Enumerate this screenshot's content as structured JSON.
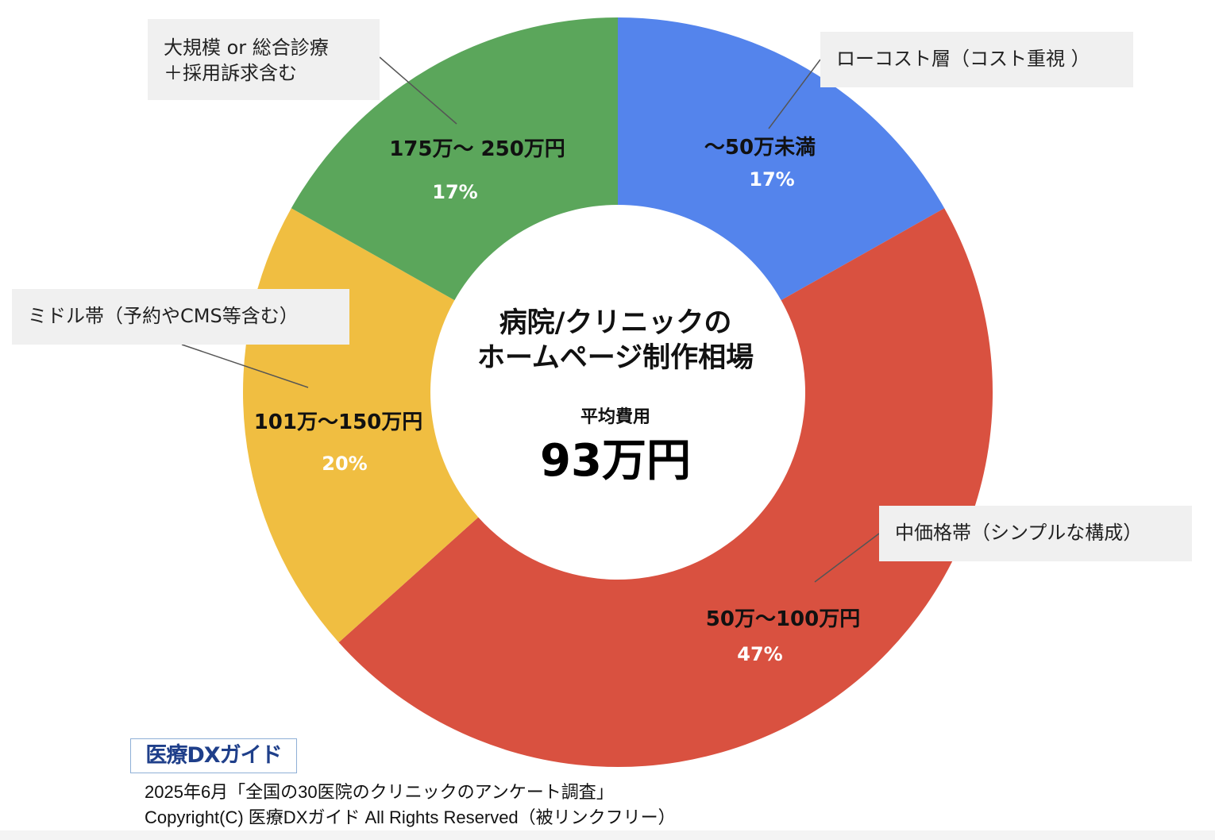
{
  "chart_data": {
    "type": "pie",
    "subtype": "donut",
    "slices": [
      {
        "label": "～50万未満",
        "percent": "17%",
        "value": 17,
        "color": "#5484ec",
        "callout": "ローコスト層（コスト重視 ）"
      },
      {
        "label": "50万～100万円",
        "percent": "47%",
        "value": 47,
        "color": "#d95140",
        "callout": "中価格帯（シンプルな構成）"
      },
      {
        "label": "101万～150万円",
        "percent": "20%",
        "value": 20,
        "color": "#f0be41",
        "callout": "ミドル帯（予約やCMS等含む）"
      },
      {
        "label": "175万～ 250万円",
        "percent": "17%",
        "value": 17,
        "color": "#5ba65b",
        "callout": "大規模 or 総合診療\n＋採用訴求含む"
      }
    ]
  },
  "center": {
    "title": "病院/クリニックの\nホームページ制作相場",
    "avg_label": "平均費用",
    "avg_value": "93万円"
  },
  "logo_text": "医療DXガイド",
  "footer": {
    "source": "2025年6月「全国の30医院のクリニックのアンケート調査」",
    "copyright": "Copyright(C) 医療DXガイド All Rights Reserved（被リンクフリー）"
  }
}
